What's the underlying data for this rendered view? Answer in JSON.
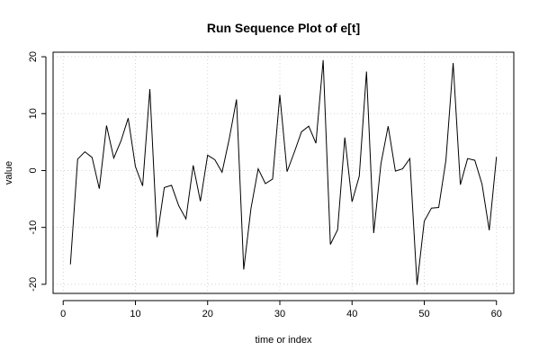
{
  "chart_data": {
    "type": "line",
    "title": "Run Sequence Plot of e[t]",
    "xlabel": "time or index",
    "ylabel": "value",
    "xlim": [
      -1.4,
      62.4
    ],
    "ylim": [
      -21.6,
      20.8
    ],
    "xticks": [
      0,
      10,
      20,
      30,
      40,
      50,
      60
    ],
    "yticks": [
      -20,
      -10,
      0,
      10,
      20
    ],
    "grid": true,
    "x": [
      1,
      2,
      3,
      4,
      5,
      6,
      7,
      8,
      9,
      10,
      11,
      12,
      13,
      14,
      15,
      16,
      17,
      18,
      19,
      20,
      21,
      22,
      23,
      24,
      25,
      26,
      27,
      28,
      29,
      30,
      31,
      32,
      33,
      34,
      35,
      36,
      37,
      38,
      39,
      40,
      41,
      42,
      43,
      44,
      45,
      46,
      47,
      48,
      49,
      50,
      51,
      52,
      53,
      54,
      55,
      56,
      57,
      58,
      59,
      60
    ],
    "series": [
      {
        "values": [
          -16.5,
          2.0,
          3.3,
          2.3,
          -3.2,
          7.9,
          2.2,
          5.2,
          9.2,
          0.7,
          -2.7,
          14.3,
          -11.7,
          -3.0,
          -2.6,
          -6.2,
          -8.5,
          0.9,
          -5.4,
          2.7,
          1.9,
          -0.3,
          5.6,
          12.5,
          -17.4,
          -6.7,
          0.3,
          -2.3,
          -1.5,
          13.3,
          -0.2,
          3.2,
          6.8,
          7.8,
          4.8,
          19.4,
          -13.0,
          -10.4,
          5.8,
          -5.5,
          -1.0,
          17.4,
          -11.0,
          1.2,
          7.8,
          -0.1,
          0.3,
          2.1,
          -20.1,
          -8.9,
          -6.6,
          -6.5,
          1.8,
          18.9,
          -2.5,
          2.1,
          1.8,
          -2.4,
          -10.5,
          2.4
        ]
      }
    ]
  }
}
